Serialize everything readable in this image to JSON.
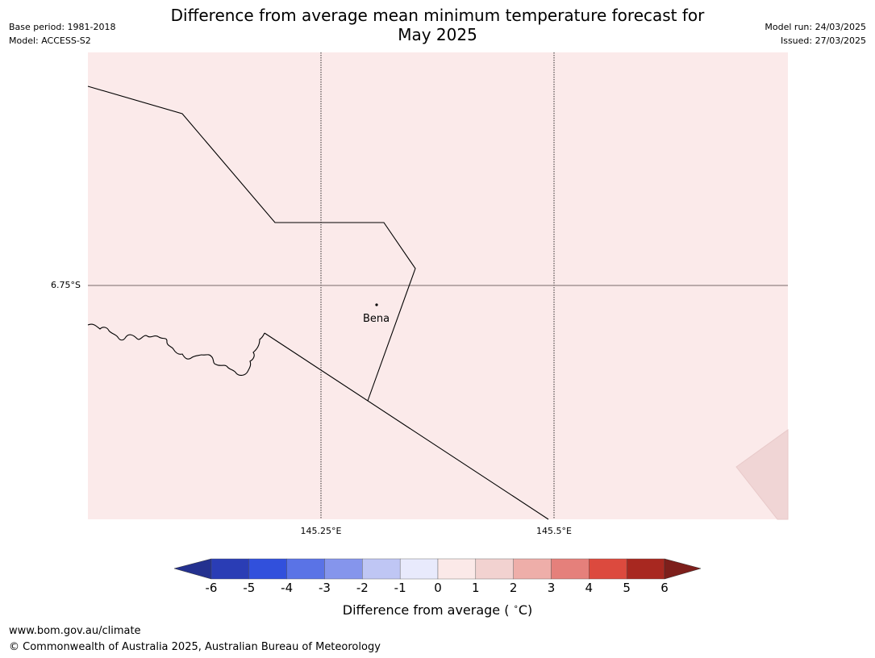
{
  "header": {
    "title": "Difference from average mean minimum temperature forecast for May 2025",
    "title_line1": "Difference from average mean minimum temperature forecast for",
    "title_line2": "May 2025",
    "base_period": "Base period: 1981-2018",
    "model": "Model: ACCESS-S2",
    "model_run": "Model run: 24/03/2025",
    "issued": "Issued: 27/03/2025"
  },
  "map": {
    "background_color": "#fbeaea",
    "latitude_labels": [
      "6.75°S"
    ],
    "longitude_labels": [
      "145.25°E",
      "145.5°E"
    ],
    "places": [
      {
        "name": "Bena"
      }
    ],
    "corner_patch_color": "#f0d5d5"
  },
  "colorbar": {
    "ticks": [
      "-6",
      "-5",
      "-4",
      "-3",
      "-2",
      "-1",
      "0",
      "1",
      "2",
      "3",
      "4",
      "5",
      "6"
    ],
    "colors": [
      "#24318f",
      "#2a3db5",
      "#3150dc",
      "#5a73e6",
      "#8595ec",
      "#bfc6f4",
      "#e8eafc",
      "#fbe9e8",
      "#f2d2d0",
      "#eeaea9",
      "#e5807b",
      "#dc4a3e",
      "#a82820",
      "#7d1f1b"
    ],
    "label": "Difference from average (°C)",
    "label_text": "Difference from average ( ",
    "label_unit": "C)",
    "label_degree": "∘"
  },
  "footer": {
    "url": "www.bom.gov.au/climate",
    "copyright": "© Commonwealth of Australia 2025, Australian Bureau of Meteorology"
  }
}
